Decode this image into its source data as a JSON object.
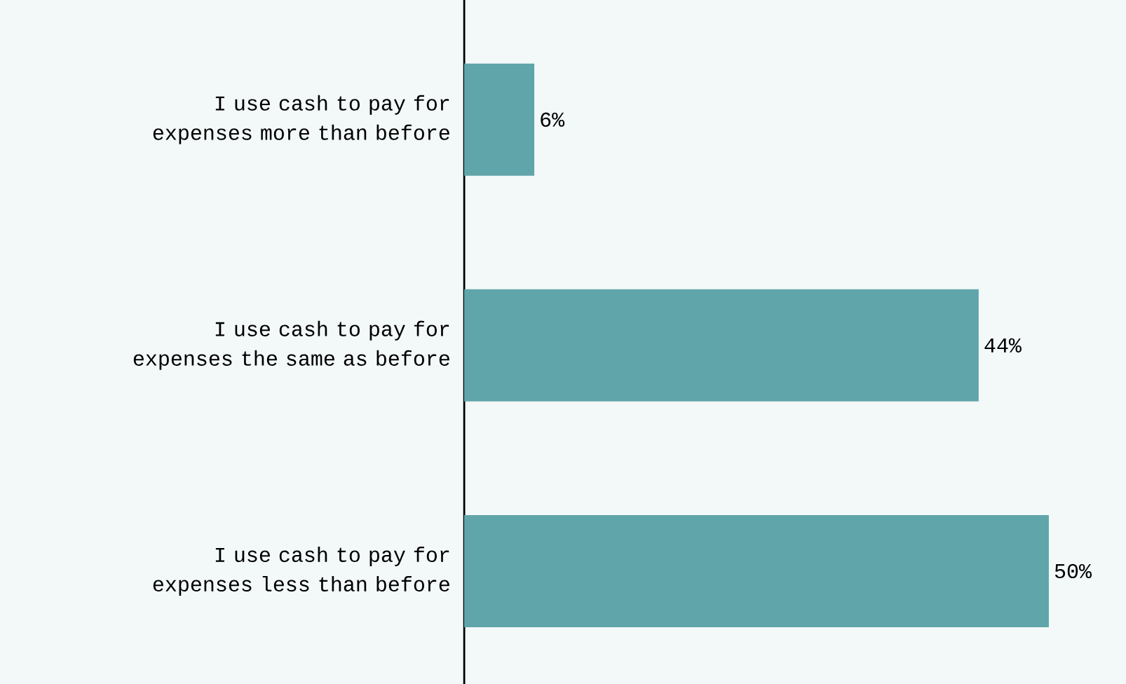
{
  "chart_data": {
    "type": "bar",
    "orientation": "horizontal",
    "categories": [
      "I use cash to pay for expenses more than before",
      "I use cash to pay for expenses the same as before",
      "I use cash to pay for expenses less than before"
    ],
    "values": [
      6,
      44,
      50
    ],
    "value_labels": [
      "6%",
      "44%",
      "50%"
    ],
    "color": "#60a5aa"
  }
}
